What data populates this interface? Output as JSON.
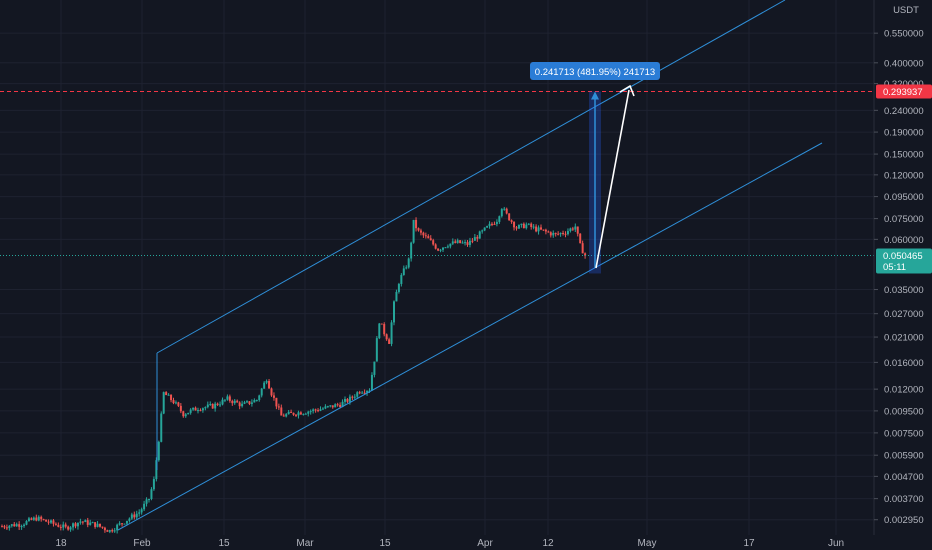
{
  "chart_data": {
    "type": "candlestick",
    "currency": "USDT",
    "y_scale": "log",
    "ylim": [
      0.00245,
      0.82
    ],
    "x_ticks": [
      "18",
      "Feb",
      "15",
      "Mar",
      "15",
      "Apr",
      "12",
      "May",
      "17",
      "Jun"
    ],
    "y_ticks": [
      {
        "label": "0.550000",
        "value": 0.55
      },
      {
        "label": "0.400000",
        "value": 0.4
      },
      {
        "label": "0.320000",
        "value": 0.32
      },
      {
        "label": "0.240000",
        "value": 0.24
      },
      {
        "label": "0.190000",
        "value": 0.19
      },
      {
        "label": "0.150000",
        "value": 0.15
      },
      {
        "label": "0.120000",
        "value": 0.12
      },
      {
        "label": "0.095000",
        "value": 0.095
      },
      {
        "label": "0.075000",
        "value": 0.075
      },
      {
        "label": "0.060000",
        "value": 0.06
      },
      {
        "label": "0.035000",
        "value": 0.035
      },
      {
        "label": "0.027000",
        "value": 0.027
      },
      {
        "label": "0.021000",
        "value": 0.021
      },
      {
        "label": "0.016000",
        "value": 0.016
      },
      {
        "label": "0.012000",
        "value": 0.012
      },
      {
        "label": "0.009500",
        "value": 0.0095
      },
      {
        "label": "0.007500",
        "value": 0.0075
      },
      {
        "label": "0.005900",
        "value": 0.0059
      },
      {
        "label": "0.004700",
        "value": 0.0047
      },
      {
        "label": "0.003700",
        "value": 0.0037
      },
      {
        "label": "0.002950",
        "value": 0.00295
      }
    ],
    "target_price": {
      "label": "0.293937",
      "value": 0.293937
    },
    "current_price": {
      "label": "0.050465",
      "value": 0.050465,
      "countdown": "05:11"
    },
    "measure_label": "0.241713 (481.95%) 241713",
    "price_path": [
      {
        "t": 0,
        "p": 0.00275
      },
      {
        "t": 4,
        "p": 0.00282
      },
      {
        "t": 7,
        "p": 0.003
      },
      {
        "t": 10,
        "p": 0.00285
      },
      {
        "t": 13,
        "p": 0.0027
      },
      {
        "t": 16,
        "p": 0.0029
      },
      {
        "t": 19,
        "p": 0.0028
      },
      {
        "t": 22,
        "p": 0.00262
      },
      {
        "t": 25,
        "p": 0.0029
      },
      {
        "t": 28,
        "p": 0.0032
      },
      {
        "t": 30,
        "p": 0.0037
      },
      {
        "t": 31,
        "p": 0.0045
      },
      {
        "t": 32,
        "p": 0.007
      },
      {
        "t": 33,
        "p": 0.0115
      },
      {
        "t": 35,
        "p": 0.0105
      },
      {
        "t": 37,
        "p": 0.0092
      },
      {
        "t": 40,
        "p": 0.0098
      },
      {
        "t": 43,
        "p": 0.01
      },
      {
        "t": 46,
        "p": 0.0108
      },
      {
        "t": 49,
        "p": 0.0101
      },
      {
        "t": 52,
        "p": 0.0107
      },
      {
        "t": 54,
        "p": 0.0135
      },
      {
        "t": 55,
        "p": 0.0115
      },
      {
        "t": 57,
        "p": 0.009
      },
      {
        "t": 60,
        "p": 0.0093
      },
      {
        "t": 63,
        "p": 0.0095
      },
      {
        "t": 66,
        "p": 0.0098
      },
      {
        "t": 69,
        "p": 0.0102
      },
      {
        "t": 71,
        "p": 0.0108
      },
      {
        "t": 73,
        "p": 0.0118
      },
      {
        "t": 75,
        "p": 0.012
      },
      {
        "t": 76,
        "p": 0.0165
      },
      {
        "t": 77,
        "p": 0.025
      },
      {
        "t": 78,
        "p": 0.022
      },
      {
        "t": 79,
        "p": 0.02
      },
      {
        "t": 80,
        "p": 0.03
      },
      {
        "t": 81,
        "p": 0.038
      },
      {
        "t": 83,
        "p": 0.048
      },
      {
        "t": 84,
        "p": 0.072
      },
      {
        "t": 85,
        "p": 0.065
      },
      {
        "t": 87,
        "p": 0.06
      },
      {
        "t": 89,
        "p": 0.054
      },
      {
        "t": 91,
        "p": 0.057
      },
      {
        "t": 93,
        "p": 0.058
      },
      {
        "t": 95,
        "p": 0.057
      },
      {
        "t": 97,
        "p": 0.062
      },
      {
        "t": 99,
        "p": 0.068
      },
      {
        "t": 101,
        "p": 0.074
      },
      {
        "t": 102,
        "p": 0.085
      },
      {
        "t": 103,
        "p": 0.078
      },
      {
        "t": 105,
        "p": 0.068
      },
      {
        "t": 107,
        "p": 0.07
      },
      {
        "t": 109,
        "p": 0.067
      },
      {
        "t": 111,
        "p": 0.065
      },
      {
        "t": 113,
        "p": 0.063
      },
      {
        "t": 115,
        "p": 0.065
      },
      {
        "t": 117,
        "p": 0.069
      },
      {
        "t": 118,
        "p": 0.056
      },
      {
        "t": 119,
        "p": 0.0505
      }
    ]
  }
}
